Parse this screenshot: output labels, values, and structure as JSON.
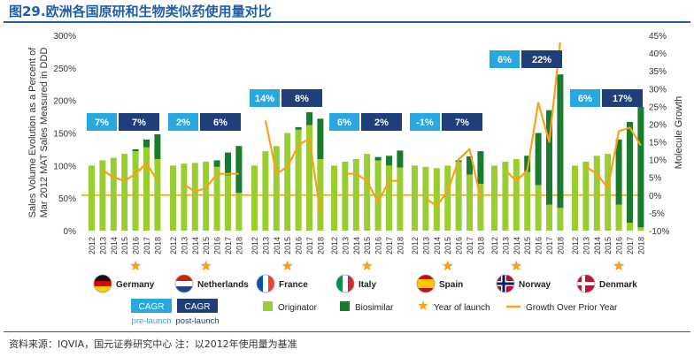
{
  "figure": {
    "title": "图29.欧洲各国原研和生物类似药使用量对比",
    "source": "资料来源：IQVIA，国元证券研究中心 注：以2012年使用量为基准"
  },
  "chart_data": {
    "type": "bar",
    "title": "图29.欧洲各国原研和生物类似药使用量对比",
    "ylabel": "Sales Volume Evolution as a Percent of Mar 2012 MAT Sales Measured in DDD",
    "y2label": "Molecule Growth",
    "ylim": [
      0,
      300
    ],
    "y2lim": [
      -10,
      45
    ],
    "yticks": [
      "0%",
      "50%",
      "100%",
      "150%",
      "200%",
      "250%",
      "300%"
    ],
    "y2ticks": [
      "-10%",
      "-5%",
      "0%",
      "5%",
      "10%",
      "15%",
      "20%",
      "25%",
      "30%",
      "35%",
      "40%",
      "45%"
    ],
    "years": [
      "2012",
      "2013",
      "2014",
      "2015",
      "2016",
      "2017",
      "2018"
    ],
    "countries": [
      {
        "name": "Germany",
        "cagr_pre": "7%",
        "cagr_post": "7%",
        "launch_year": "2016",
        "originator": [
          100,
          108,
          112,
          118,
          122,
          128,
          110
        ],
        "biosimilar": [
          0,
          0,
          0,
          0,
          3,
          12,
          38
        ],
        "growth": [
          null,
          7,
          5,
          4,
          6,
          9,
          4
        ]
      },
      {
        "name": "Netherlands",
        "cagr_pre": "2%",
        "cagr_post": "6%",
        "launch_year": "2015",
        "originator": [
          100,
          103,
          104,
          106,
          98,
          85,
          58
        ],
        "biosimilar": [
          0,
          0,
          0,
          0,
          10,
          35,
          72
        ],
        "growth": [
          null,
          3,
          1,
          2,
          6,
          6,
          6
        ]
      },
      {
        "name": "France",
        "cagr_pre": "14%",
        "cagr_post": "8%",
        "launch_year": "2015",
        "originator": [
          100,
          122,
          130,
          150,
          155,
          162,
          110
        ],
        "biosimilar": [
          0,
          0,
          0,
          0,
          4,
          20,
          62
        ],
        "growth": [
          null,
          21,
          6,
          8,
          14,
          16,
          -5
        ]
      },
      {
        "name": "Italy",
        "cagr_pre": "6%",
        "cagr_post": "2%",
        "launch_year": "2015",
        "originator": [
          100,
          106,
          110,
          118,
          108,
          100,
          97
        ],
        "biosimilar": [
          0,
          0,
          0,
          0,
          5,
          15,
          26
        ],
        "growth": [
          null,
          6,
          6,
          4,
          -2,
          4,
          4
        ]
      },
      {
        "name": "Spain",
        "cagr_pre": "-1%",
        "cagr_post": "7%",
        "launch_year": "2015",
        "originator": [
          100,
          98,
          96,
          100,
          106,
          86,
          72
        ],
        "biosimilar": [
          0,
          0,
          0,
          0,
          2,
          28,
          50
        ],
        "growth": [
          null,
          -1,
          -3,
          1,
          10,
          13,
          -1
        ]
      },
      {
        "name": "Norway",
        "cagr_pre": "6%",
        "cagr_post": "22%",
        "launch_year": "2014",
        "originator": [
          100,
          106,
          110,
          90,
          70,
          40,
          35
        ],
        "biosimilar": [
          0,
          0,
          0,
          25,
          80,
          145,
          205
        ],
        "growth": [
          null,
          7,
          4,
          7,
          26,
          15,
          43
        ]
      },
      {
        "name": "Denmark",
        "cagr_pre": "6%",
        "cagr_post": "17%",
        "launch_year": "2016",
        "originator": [
          100,
          106,
          115,
          118,
          40,
          12,
          5
        ],
        "biosimilar": [
          0,
          0,
          0,
          0,
          100,
          155,
          185
        ],
        "growth": [
          null,
          8,
          6,
          2,
          18,
          19,
          14
        ]
      }
    ],
    "legend": {
      "cagr_label": "CAGR",
      "pre_launch": "pre-launch",
      "post_launch": "post-launch",
      "originator": "Originator",
      "biosimilar": "Biosimilar",
      "year_of_launch": "Year of launch",
      "growth": "Growth Over Prior Year"
    },
    "colors": {
      "originator": "#9acd32",
      "biosimilar": "#1a7a2e",
      "growth_line": "#f7a21b",
      "star": "#f7a21b",
      "cagr_pre": "#29a8e0",
      "cagr_post": "#1f3f7a",
      "zero_line": "#f7a21b"
    }
  }
}
